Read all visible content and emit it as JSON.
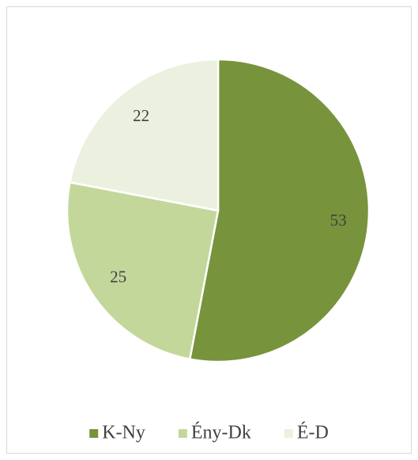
{
  "chart_data": {
    "type": "pie",
    "categories": [
      "K-Ny",
      "Ény-Dk",
      "É-D"
    ],
    "values": [
      53,
      25,
      22
    ],
    "colors": [
      "#77933c",
      "#c4d79b",
      "#ebf1de"
    ],
    "legend": "bottom"
  }
}
